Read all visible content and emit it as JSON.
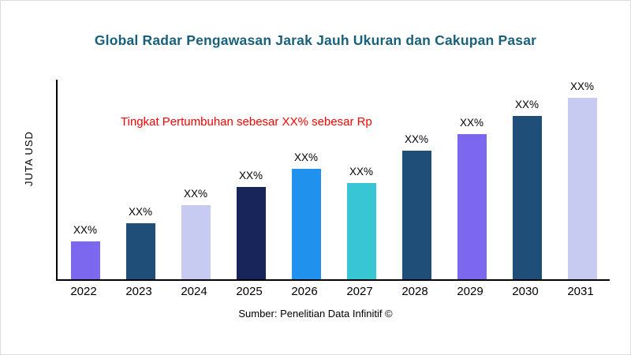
{
  "title": "Global Radar Pengawasan Jarak Jauh Ukuran dan Cakupan Pasar",
  "annotation": "Tingkat Pertumbuhan sebesar XX% sebesar Rp",
  "ylabel": "JUTA USD",
  "source": "Sumber: Penelitian Data Infinitif ©",
  "colors": {
    "title": "#19607a",
    "annotation": "#ff0000",
    "axis": "#000000"
  },
  "chart_data": {
    "type": "bar",
    "title": "Global Radar Pengawasan Jarak Jauh Ukuran dan Cakupan Pasar",
    "xlabel": "",
    "ylabel": "JUTA USD",
    "categories": [
      "2022",
      "2023",
      "2024",
      "2025",
      "2026",
      "2027",
      "2028",
      "2029",
      "2030",
      "2031"
    ],
    "values": [
      21,
      31,
      41,
      51,
      61,
      53,
      71,
      80,
      90,
      100
    ],
    "value_labels": [
      "XX%",
      "XX%",
      "XX%",
      "XX%",
      "XX%",
      "XX%",
      "XX%",
      "XX%",
      "XX%",
      "XX%"
    ],
    "bar_colors": [
      "#7b68ee",
      "#1f4e79",
      "#c7cbf1",
      "#17255a",
      "#2191ee",
      "#38c6d4",
      "#1f4e79",
      "#7b68ee",
      "#1f4e79",
      "#c7cbf1"
    ],
    "ylim": [
      0,
      110
    ],
    "grid": false,
    "legend": false,
    "annotation": "Tingkat Pertumbuhan sebesar XX% sebesar Rp"
  }
}
